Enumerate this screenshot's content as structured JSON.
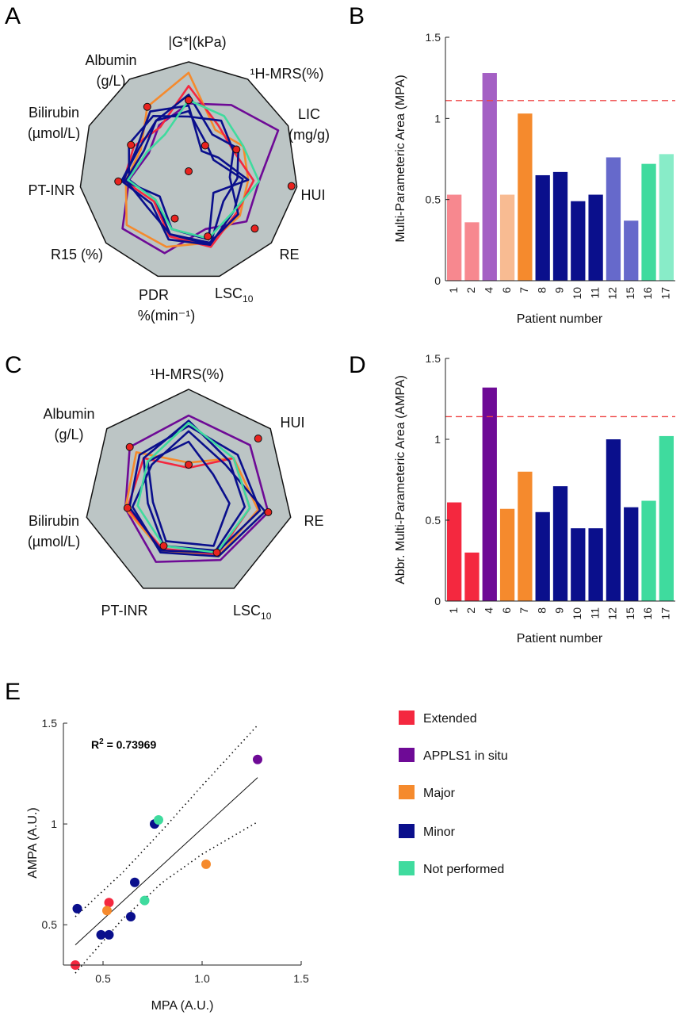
{
  "panels": {
    "A": "A",
    "B": "B",
    "C": "C",
    "D": "D",
    "E": "E"
  },
  "colors": {
    "extended": "#f4283f",
    "extended_light": "#f7888f",
    "appls1": "#6e0a96",
    "appls1_light": "#a460c4",
    "major": "#f58a2d",
    "major_light": "#f8bb92",
    "minor": "#0a0f8c",
    "minor_light": "#6669cb",
    "not_performed": "#3fdb9e",
    "not_performed_light": "#88ecc8",
    "radar_fill": "#bcc5c5",
    "threshold": "#ef4444"
  },
  "radarA": {
    "spokes": [
      "|G*|(kPa)",
      "¹H-MRS(%)",
      "LIC\n(mg/g)",
      "HUI",
      "RE",
      "LSC10",
      "PDR\n%(min⁻¹)",
      "R15 (%)",
      "PT-INR",
      "Bilirubin\n(µmol/L)",
      "Albumin\n(g/L)"
    ],
    "lsc_main": "LSC",
    "lsc_sub": "10",
    "pdr_line1": "PDR",
    "pdr_line2": "%(min⁻¹)"
  },
  "radarC": {
    "spokes": [
      "¹H-MRS(%)",
      "HUI",
      "RE",
      "LSC10",
      "PT-INR",
      "Bilirubin\n(µmol/L)",
      "Albumin\n(g/L)"
    ],
    "lsc_main": "LSC",
    "lsc_sub": "10"
  },
  "chart_data": [
    {
      "type": "bar",
      "panel": "B",
      "categories": [
        "1",
        "2",
        "4",
        "6",
        "7",
        "8",
        "9",
        "10",
        "11",
        "12",
        "15",
        "16",
        "17"
      ],
      "values": [
        0.53,
        0.36,
        1.28,
        0.53,
        1.03,
        0.65,
        0.67,
        0.49,
        0.53,
        0.76,
        0.37,
        0.72,
        0.78
      ],
      "groups": [
        "extended_light",
        "extended_light",
        "appls1_light",
        "major_light",
        "major",
        "minor",
        "minor",
        "minor",
        "minor",
        "minor_light",
        "minor_light",
        "not_performed",
        "not_performed_light"
      ],
      "threshold": 1.11,
      "xlabel": "Patient number",
      "ylabel": "Multi-Parameteric Area (MPA)",
      "ylim": [
        0,
        1.5
      ],
      "yticks": [
        "0",
        "0.5",
        "1",
        "1.5"
      ]
    },
    {
      "type": "bar",
      "panel": "D",
      "categories": [
        "1",
        "2",
        "4",
        "6",
        "7",
        "8",
        "9",
        "10",
        "11",
        "12",
        "15",
        "16",
        "17"
      ],
      "values": [
        0.61,
        0.3,
        1.32,
        0.57,
        0.8,
        0.55,
        0.71,
        0.45,
        0.45,
        1.0,
        0.58,
        0.62,
        1.02
      ],
      "groups": [
        "extended",
        "extended",
        "appls1",
        "major",
        "major",
        "minor",
        "minor",
        "minor",
        "minor",
        "minor",
        "minor",
        "not_performed",
        "not_performed"
      ],
      "threshold": 1.14,
      "xlabel": "Patient number",
      "ylabel": "Abbr. Multi-Parameteric Area (AMPA)",
      "ylim": [
        0,
        1.5
      ],
      "yticks": [
        "0",
        "0.5",
        "1",
        "1.5"
      ]
    },
    {
      "type": "scatter",
      "panel": "E",
      "xlabel": "MPA (A.U.)",
      "ylabel": "AMPA (A.U.)",
      "xlim": [
        0.3,
        1.5
      ],
      "ylim": [
        0.3,
        1.5
      ],
      "xticks": [
        "0.5",
        "1.0",
        "1.5"
      ],
      "yticks": [
        "0.5",
        "1",
        "1.5"
      ],
      "annotation": "R",
      "annotation_sup": "2",
      "annotation_value": " = 0.73969",
      "points": [
        {
          "x": 0.36,
          "y": 0.3,
          "group": "extended"
        },
        {
          "x": 0.53,
          "y": 0.61,
          "group": "extended"
        },
        {
          "x": 1.28,
          "y": 1.32,
          "group": "appls1"
        },
        {
          "x": 0.52,
          "y": 0.57,
          "group": "major"
        },
        {
          "x": 1.02,
          "y": 0.8,
          "group": "major"
        },
        {
          "x": 0.37,
          "y": 0.58,
          "group": "minor"
        },
        {
          "x": 0.49,
          "y": 0.45,
          "group": "minor"
        },
        {
          "x": 0.53,
          "y": 0.45,
          "group": "minor"
        },
        {
          "x": 0.64,
          "y": 0.54,
          "group": "minor"
        },
        {
          "x": 0.66,
          "y": 0.71,
          "group": "minor"
        },
        {
          "x": 0.76,
          "y": 1.0,
          "group": "minor"
        },
        {
          "x": 0.71,
          "y": 0.62,
          "group": "not_performed"
        },
        {
          "x": 0.78,
          "y": 1.02,
          "group": "not_performed"
        }
      ],
      "fit": {
        "x": [
          0.36,
          1.28
        ],
        "y": [
          0.4,
          1.23
        ]
      },
      "ci_upper": {
        "x": [
          0.36,
          0.6,
          0.8,
          1.0,
          1.28
        ],
        "y": [
          0.54,
          0.76,
          0.97,
          1.19,
          1.49
        ]
      },
      "ci_lower": {
        "x": [
          0.36,
          0.6,
          0.8,
          1.0,
          1.28
        ],
        "y": [
          0.26,
          0.53,
          0.71,
          0.85,
          1.01
        ]
      }
    }
  ],
  "legend": [
    {
      "label": "Extended",
      "color": "#f4283f"
    },
    {
      "label": "APPLS1 in situ",
      "color": "#6e0a96"
    },
    {
      "label": "Major",
      "color": "#f58a2d"
    },
    {
      "label": "Minor",
      "color": "#0a0f8c"
    },
    {
      "label": "Not performed",
      "color": "#3fdb9e"
    }
  ]
}
